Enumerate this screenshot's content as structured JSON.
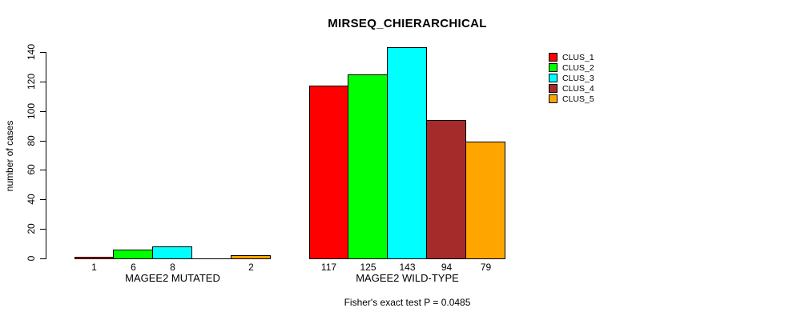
{
  "chart_data": {
    "type": "bar",
    "title": "MIRSEQ_CHIERARCHICAL",
    "ylabel": "number of cases",
    "xlabel": "",
    "ylim": [
      0,
      140
    ],
    "yticks": [
      0,
      20,
      40,
      60,
      80,
      100,
      120,
      140
    ],
    "grid": false,
    "legend_position": "top-right",
    "legend": [
      {
        "name": "CLUS_1",
        "color": "#FF0000"
      },
      {
        "name": "CLUS_2",
        "color": "#00FF00"
      },
      {
        "name": "CLUS_3",
        "color": "#00FFFF"
      },
      {
        "name": "CLUS_4",
        "color": "#A52A2A"
      },
      {
        "name": "CLUS_5",
        "color": "#FFA500"
      }
    ],
    "groups": [
      {
        "label": "MAGEE2 MUTATED",
        "bars": [
          {
            "series": "CLUS_1",
            "value": 1,
            "label": "1"
          },
          {
            "series": "CLUS_2",
            "value": 6,
            "label": "6"
          },
          {
            "series": "CLUS_3",
            "value": 8,
            "label": "8"
          },
          {
            "series": "CLUS_4",
            "value": 0,
            "label": ""
          },
          {
            "series": "CLUS_5",
            "value": 2,
            "label": "2"
          }
        ]
      },
      {
        "label": "MAGEE2 WILD-TYPE",
        "bars": [
          {
            "series": "CLUS_1",
            "value": 117,
            "label": "117"
          },
          {
            "series": "CLUS_2",
            "value": 125,
            "label": "125"
          },
          {
            "series": "CLUS_3",
            "value": 143,
            "label": "143"
          },
          {
            "series": "CLUS_4",
            "value": 94,
            "label": "94"
          },
          {
            "series": "CLUS_5",
            "value": 79,
            "label": "79"
          }
        ]
      }
    ],
    "footer": "Fisher's exact test P = 0.0485"
  }
}
